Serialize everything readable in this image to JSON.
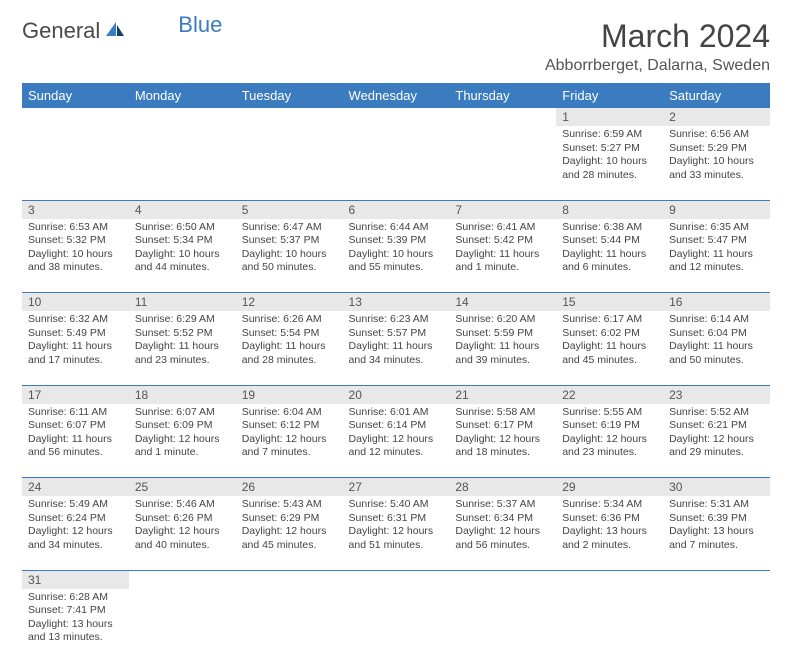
{
  "brand": {
    "part1": "General",
    "part2": "Blue"
  },
  "title": "March 2024",
  "location": "Abborrberget, Dalarna, Sweden",
  "colors": {
    "header_bg": "#3b7bbf",
    "header_fg": "#ffffff",
    "daynum_bg": "#e8e8e8",
    "row_border": "#3b7bbf",
    "text": "#444444"
  },
  "weekdays": [
    "Sunday",
    "Monday",
    "Tuesday",
    "Wednesday",
    "Thursday",
    "Friday",
    "Saturday"
  ],
  "weeks": [
    [
      null,
      null,
      null,
      null,
      null,
      {
        "n": "1",
        "sr": "Sunrise: 6:59 AM",
        "ss": "Sunset: 5:27 PM",
        "dl": "Daylight: 10 hours and 28 minutes."
      },
      {
        "n": "2",
        "sr": "Sunrise: 6:56 AM",
        "ss": "Sunset: 5:29 PM",
        "dl": "Daylight: 10 hours and 33 minutes."
      }
    ],
    [
      {
        "n": "3",
        "sr": "Sunrise: 6:53 AM",
        "ss": "Sunset: 5:32 PM",
        "dl": "Daylight: 10 hours and 38 minutes."
      },
      {
        "n": "4",
        "sr": "Sunrise: 6:50 AM",
        "ss": "Sunset: 5:34 PM",
        "dl": "Daylight: 10 hours and 44 minutes."
      },
      {
        "n": "5",
        "sr": "Sunrise: 6:47 AM",
        "ss": "Sunset: 5:37 PM",
        "dl": "Daylight: 10 hours and 50 minutes."
      },
      {
        "n": "6",
        "sr": "Sunrise: 6:44 AM",
        "ss": "Sunset: 5:39 PM",
        "dl": "Daylight: 10 hours and 55 minutes."
      },
      {
        "n": "7",
        "sr": "Sunrise: 6:41 AM",
        "ss": "Sunset: 5:42 PM",
        "dl": "Daylight: 11 hours and 1 minute."
      },
      {
        "n": "8",
        "sr": "Sunrise: 6:38 AM",
        "ss": "Sunset: 5:44 PM",
        "dl": "Daylight: 11 hours and 6 minutes."
      },
      {
        "n": "9",
        "sr": "Sunrise: 6:35 AM",
        "ss": "Sunset: 5:47 PM",
        "dl": "Daylight: 11 hours and 12 minutes."
      }
    ],
    [
      {
        "n": "10",
        "sr": "Sunrise: 6:32 AM",
        "ss": "Sunset: 5:49 PM",
        "dl": "Daylight: 11 hours and 17 minutes."
      },
      {
        "n": "11",
        "sr": "Sunrise: 6:29 AM",
        "ss": "Sunset: 5:52 PM",
        "dl": "Daylight: 11 hours and 23 minutes."
      },
      {
        "n": "12",
        "sr": "Sunrise: 6:26 AM",
        "ss": "Sunset: 5:54 PM",
        "dl": "Daylight: 11 hours and 28 minutes."
      },
      {
        "n": "13",
        "sr": "Sunrise: 6:23 AM",
        "ss": "Sunset: 5:57 PM",
        "dl": "Daylight: 11 hours and 34 minutes."
      },
      {
        "n": "14",
        "sr": "Sunrise: 6:20 AM",
        "ss": "Sunset: 5:59 PM",
        "dl": "Daylight: 11 hours and 39 minutes."
      },
      {
        "n": "15",
        "sr": "Sunrise: 6:17 AM",
        "ss": "Sunset: 6:02 PM",
        "dl": "Daylight: 11 hours and 45 minutes."
      },
      {
        "n": "16",
        "sr": "Sunrise: 6:14 AM",
        "ss": "Sunset: 6:04 PM",
        "dl": "Daylight: 11 hours and 50 minutes."
      }
    ],
    [
      {
        "n": "17",
        "sr": "Sunrise: 6:11 AM",
        "ss": "Sunset: 6:07 PM",
        "dl": "Daylight: 11 hours and 56 minutes."
      },
      {
        "n": "18",
        "sr": "Sunrise: 6:07 AM",
        "ss": "Sunset: 6:09 PM",
        "dl": "Daylight: 12 hours and 1 minute."
      },
      {
        "n": "19",
        "sr": "Sunrise: 6:04 AM",
        "ss": "Sunset: 6:12 PM",
        "dl": "Daylight: 12 hours and 7 minutes."
      },
      {
        "n": "20",
        "sr": "Sunrise: 6:01 AM",
        "ss": "Sunset: 6:14 PM",
        "dl": "Daylight: 12 hours and 12 minutes."
      },
      {
        "n": "21",
        "sr": "Sunrise: 5:58 AM",
        "ss": "Sunset: 6:17 PM",
        "dl": "Daylight: 12 hours and 18 minutes."
      },
      {
        "n": "22",
        "sr": "Sunrise: 5:55 AM",
        "ss": "Sunset: 6:19 PM",
        "dl": "Daylight: 12 hours and 23 minutes."
      },
      {
        "n": "23",
        "sr": "Sunrise: 5:52 AM",
        "ss": "Sunset: 6:21 PM",
        "dl": "Daylight: 12 hours and 29 minutes."
      }
    ],
    [
      {
        "n": "24",
        "sr": "Sunrise: 5:49 AM",
        "ss": "Sunset: 6:24 PM",
        "dl": "Daylight: 12 hours and 34 minutes."
      },
      {
        "n": "25",
        "sr": "Sunrise: 5:46 AM",
        "ss": "Sunset: 6:26 PM",
        "dl": "Daylight: 12 hours and 40 minutes."
      },
      {
        "n": "26",
        "sr": "Sunrise: 5:43 AM",
        "ss": "Sunset: 6:29 PM",
        "dl": "Daylight: 12 hours and 45 minutes."
      },
      {
        "n": "27",
        "sr": "Sunrise: 5:40 AM",
        "ss": "Sunset: 6:31 PM",
        "dl": "Daylight: 12 hours and 51 minutes."
      },
      {
        "n": "28",
        "sr": "Sunrise: 5:37 AM",
        "ss": "Sunset: 6:34 PM",
        "dl": "Daylight: 12 hours and 56 minutes."
      },
      {
        "n": "29",
        "sr": "Sunrise: 5:34 AM",
        "ss": "Sunset: 6:36 PM",
        "dl": "Daylight: 13 hours and 2 minutes."
      },
      {
        "n": "30",
        "sr": "Sunrise: 5:31 AM",
        "ss": "Sunset: 6:39 PM",
        "dl": "Daylight: 13 hours and 7 minutes."
      }
    ],
    [
      {
        "n": "31",
        "sr": "Sunrise: 6:28 AM",
        "ss": "Sunset: 7:41 PM",
        "dl": "Daylight: 13 hours and 13 minutes."
      },
      null,
      null,
      null,
      null,
      null,
      null
    ]
  ]
}
